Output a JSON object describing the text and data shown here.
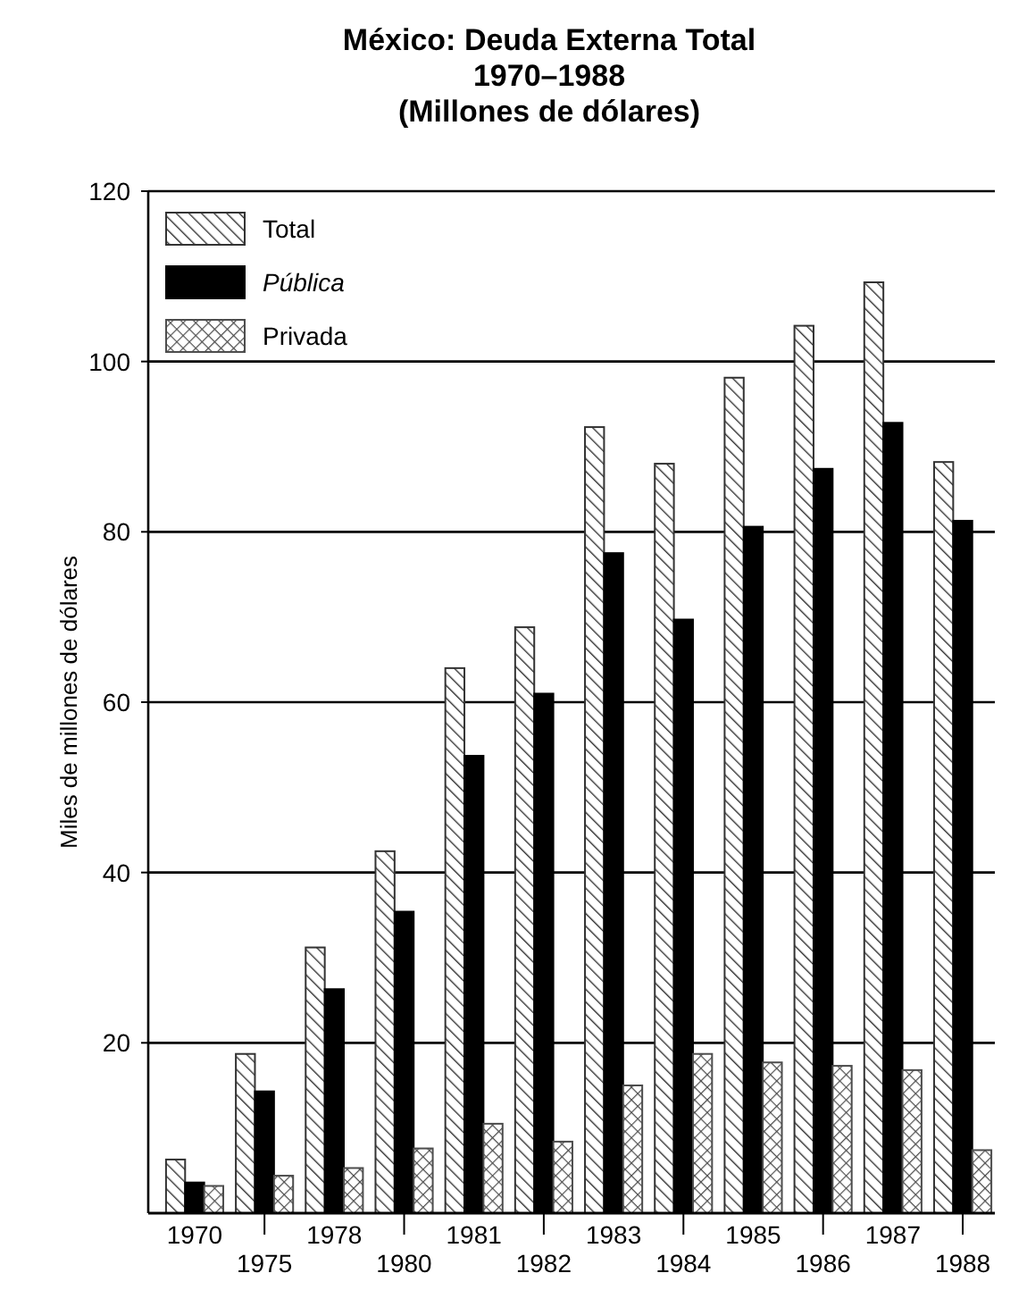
{
  "chart_data": {
    "type": "bar",
    "title": "México: Deuda Externa Total",
    "subtitle": "1970–1988\n(Millones de dólares)",
    "ylabel": "Miles de millones de dólares",
    "categories": [
      "1970",
      "1975",
      "1978",
      "1980",
      "1981",
      "1982",
      "1983",
      "1984",
      "1985",
      "1986",
      "1987",
      "1988"
    ],
    "series": [
      {
        "name": "Total",
        "color": "#333333",
        "values": [
          6.3,
          18.7,
          31.2,
          42.5,
          64,
          68.8,
          92.3,
          88,
          98.1,
          104.2,
          109.3,
          88.2
        ]
      },
      {
        "name": "Pública",
        "color": "#000000",
        "values": [
          3.6,
          14.3,
          26.3,
          35.4,
          53.7,
          61,
          77.5,
          69.7,
          80.6,
          87.4,
          92.8,
          81.3
        ]
      },
      {
        "name": "Privada",
        "color": "#4d4d4d",
        "values": [
          3.2,
          4.4,
          5.3,
          7.6,
          10.5,
          8.4,
          15,
          18.7,
          17.7,
          17.3,
          16.8,
          7.4
        ]
      }
    ],
    "ylim": [
      0,
      120
    ],
    "yticks": [
      20,
      40,
      60,
      80,
      100,
      120
    ],
    "grid": "y",
    "legend": "top left"
  }
}
